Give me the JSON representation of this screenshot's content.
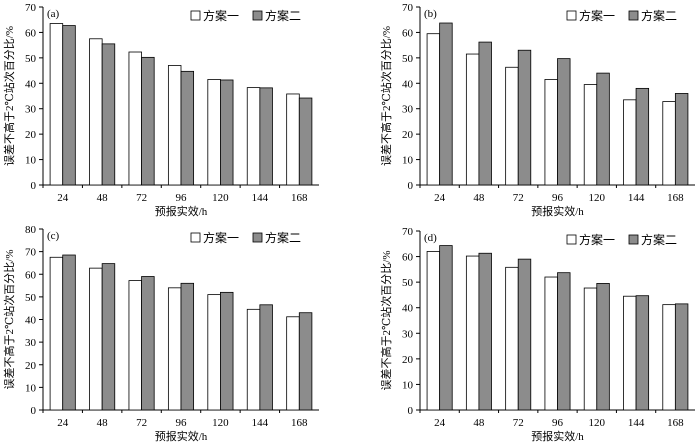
{
  "chart_data": [
    {
      "type": "bar",
      "panel_label": "(a)",
      "categories": [
        "24",
        "48",
        "72",
        "96",
        "120",
        "144",
        "168"
      ],
      "series": [
        {
          "name": "方案一",
          "values": [
            63.5,
            57.5,
            52.3,
            47.0,
            41.5,
            38.3,
            35.8
          ]
        },
        {
          "name": "方案二",
          "values": [
            62.7,
            55.5,
            50.2,
            44.7,
            41.3,
            38.2,
            34.2
          ]
        }
      ],
      "xlabel": "预报实效/h",
      "ylabel": "误差不高于2℃站次百分比/%",
      "ylim": [
        0,
        70
      ],
      "yticks": [
        0,
        10,
        20,
        30,
        40,
        50,
        60,
        70
      ],
      "grid": false,
      "legend": "top-right"
    },
    {
      "type": "bar",
      "panel_label": "(b)",
      "categories": [
        "24",
        "48",
        "72",
        "96",
        "120",
        "144",
        "168"
      ],
      "series": [
        {
          "name": "方案一",
          "values": [
            59.5,
            51.5,
            46.3,
            41.5,
            39.5,
            33.5,
            32.8
          ]
        },
        {
          "name": "方案二",
          "values": [
            63.7,
            56.2,
            53.0,
            49.7,
            44.0,
            38.0,
            36.0
          ]
        }
      ],
      "xlabel": "预报实效/h",
      "ylabel": "误差不高于2℃站次百分比/%",
      "ylim": [
        0,
        70
      ],
      "yticks": [
        0,
        10,
        20,
        30,
        40,
        50,
        60,
        70
      ],
      "grid": false,
      "legend": "top-right"
    },
    {
      "type": "bar",
      "panel_label": "(c)",
      "categories": [
        "24",
        "48",
        "72",
        "96",
        "120",
        "144",
        "168"
      ],
      "series": [
        {
          "name": "方案一",
          "values": [
            67.5,
            62.7,
            57.2,
            54.0,
            51.0,
            44.5,
            41.2
          ]
        },
        {
          "name": "方案二",
          "values": [
            68.5,
            64.7,
            59.0,
            56.0,
            52.0,
            46.5,
            43.0
          ]
        }
      ],
      "xlabel": "预报实效/h",
      "ylabel": "误差不高于2℃站次百分比/%",
      "ylim": [
        0,
        80
      ],
      "yticks": [
        0,
        10,
        20,
        30,
        40,
        50,
        60,
        70,
        80
      ],
      "grid": false,
      "legend": "top-right"
    },
    {
      "type": "bar",
      "panel_label": "(d)",
      "categories": [
        "24",
        "48",
        "72",
        "96",
        "120",
        "144",
        "168"
      ],
      "series": [
        {
          "name": "方案一",
          "values": [
            62.0,
            60.2,
            55.8,
            52.0,
            47.7,
            44.5,
            41.2
          ]
        },
        {
          "name": "方案二",
          "values": [
            64.3,
            61.3,
            59.0,
            53.7,
            49.5,
            44.7,
            41.5
          ]
        }
      ],
      "xlabel": "预报实效/h",
      "ylabel": "误差不高于2℃站次百分比/%",
      "ylim": [
        0,
        70
      ],
      "yticks": [
        0,
        10,
        20,
        30,
        40,
        50,
        60,
        70
      ],
      "grid": false,
      "legend": "top-right"
    }
  ],
  "colors": {
    "series_1_fill": "#ffffff",
    "series_2_fill": "#8c8c8c",
    "stroke": "#000000",
    "axis": "#000000"
  }
}
